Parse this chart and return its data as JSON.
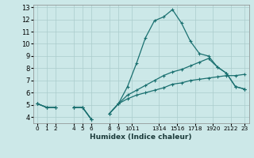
{
  "xlabel": "Humidex (Indice chaleur)",
  "ylabel": "",
  "bg_color": "#cce8e8",
  "grid_color": "#aacccc",
  "line_color": "#1a7070",
  "x_values": [
    0,
    1,
    2,
    3,
    4,
    5,
    6,
    7,
    8,
    9,
    10,
    11,
    12,
    13,
    14,
    15,
    16,
    17,
    18,
    19,
    20,
    21,
    22,
    23
  ],
  "line1": [
    5.1,
    4.8,
    4.8,
    null,
    4.8,
    4.8,
    3.8,
    null,
    4.3,
    5.1,
    6.5,
    8.4,
    10.5,
    11.9,
    12.2,
    12.8,
    11.7,
    10.2,
    9.2,
    9.0,
    8.1,
    7.6,
    6.5,
    6.3
  ],
  "line2": [
    5.1,
    4.8,
    4.8,
    null,
    4.8,
    4.8,
    3.8,
    null,
    4.3,
    5.1,
    5.5,
    5.8,
    6.0,
    6.2,
    6.4,
    6.7,
    6.8,
    7.0,
    7.1,
    7.2,
    7.3,
    7.4,
    7.4,
    7.5
  ],
  "line3": [
    5.1,
    null,
    null,
    null,
    null,
    null,
    null,
    null,
    null,
    null,
    null,
    null,
    null,
    null,
    null,
    null,
    null,
    null,
    null,
    null,
    null,
    null,
    null,
    6.3
  ],
  "line4": [
    5.1,
    4.8,
    4.8,
    null,
    4.8,
    4.8,
    3.8,
    null,
    4.3,
    5.1,
    5.8,
    6.2,
    6.6,
    7.0,
    7.4,
    7.7,
    7.9,
    8.2,
    8.5,
    8.8,
    8.1,
    7.6,
    6.5,
    6.3
  ],
  "ylim": [
    3.5,
    13.2
  ],
  "xlim": [
    -0.5,
    23.5
  ],
  "yticks": [
    4,
    5,
    6,
    7,
    8,
    9,
    10,
    11,
    12,
    13
  ],
  "xtick_positions": [
    0,
    1,
    2,
    4,
    5,
    6,
    8,
    9,
    10.5,
    13.5,
    15.5,
    17.5,
    19.5,
    21.5,
    23
  ],
  "xtick_labels": [
    "0",
    "1",
    "2",
    "4",
    "5",
    "6",
    "8",
    "9",
    "1011",
    "1314",
    "1516",
    "1718",
    "1920",
    "2122",
    "23"
  ]
}
